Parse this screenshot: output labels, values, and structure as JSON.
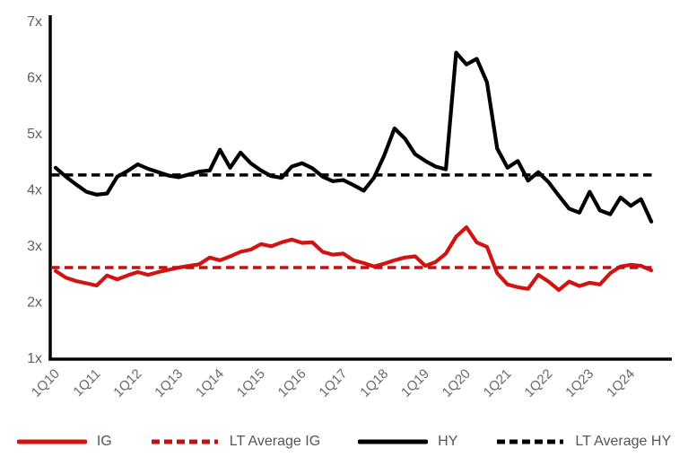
{
  "chart_data": {
    "type": "line",
    "title": "",
    "ylabel": "",
    "xlabel": "",
    "ylim": [
      1,
      7
    ],
    "grid": false,
    "legend_position": "bottom",
    "y_ticks": [
      {
        "label": "7x",
        "value": 7
      },
      {
        "label": "6x",
        "value": 6
      },
      {
        "label": "5x",
        "value": 5
      },
      {
        "label": "4x",
        "value": 4
      },
      {
        "label": "3x",
        "value": 3
      },
      {
        "label": "2x",
        "value": 2
      },
      {
        "label": "1x",
        "value": 1
      }
    ],
    "x_tick_labels": [
      "1Q10",
      "1Q11",
      "1Q12",
      "1Q13",
      "1Q14",
      "1Q15",
      "1Q16",
      "1Q17",
      "1Q18",
      "1Q19",
      "1Q20",
      "1Q21",
      "1Q22",
      "1Q23",
      "1Q24"
    ],
    "x_categories": [
      "1Q10",
      "2Q10",
      "3Q10",
      "4Q10",
      "1Q11",
      "2Q11",
      "3Q11",
      "4Q11",
      "1Q12",
      "2Q12",
      "3Q12",
      "4Q12",
      "1Q13",
      "2Q13",
      "3Q13",
      "4Q13",
      "1Q14",
      "2Q14",
      "3Q14",
      "4Q14",
      "1Q15",
      "2Q15",
      "3Q15",
      "4Q15",
      "1Q16",
      "2Q16",
      "3Q16",
      "4Q16",
      "1Q17",
      "2Q17",
      "3Q17",
      "4Q17",
      "1Q18",
      "2Q18",
      "3Q18",
      "4Q18",
      "1Q19",
      "2Q19",
      "3Q19",
      "4Q19",
      "1Q20",
      "2Q20",
      "3Q20",
      "4Q20",
      "1Q21",
      "2Q21",
      "3Q21",
      "4Q21",
      "1Q22",
      "2Q22",
      "3Q22",
      "4Q22",
      "1Q23",
      "2Q23",
      "3Q23",
      "4Q23",
      "1Q24",
      "2Q24",
      "3Q24"
    ],
    "colors": {
      "ig": "#d21410",
      "hy": "#000000",
      "axis": "#000000",
      "tick_text": "#5d5f63"
    },
    "series": [
      {
        "name": "IG",
        "style": "solid",
        "color": "#d21410",
        "values": [
          2.54,
          2.42,
          2.36,
          2.32,
          2.28,
          2.46,
          2.39,
          2.46,
          2.52,
          2.47,
          2.52,
          2.56,
          2.6,
          2.63,
          2.66,
          2.78,
          2.73,
          2.8,
          2.88,
          2.92,
          3.02,
          2.98,
          3.05,
          3.1,
          3.04,
          3.05,
          2.88,
          2.83,
          2.85,
          2.73,
          2.68,
          2.62,
          2.67,
          2.73,
          2.78,
          2.8,
          2.63,
          2.7,
          2.85,
          3.15,
          3.32,
          3.05,
          2.97,
          2.5,
          2.3,
          2.25,
          2.22,
          2.47,
          2.35,
          2.2,
          2.35,
          2.27,
          2.33,
          2.3,
          2.5,
          2.62,
          2.65,
          2.63,
          2.55
        ]
      },
      {
        "name": "LT Average IG",
        "style": "dashed",
        "color": "#c50f12",
        "average_value": 2.6
      },
      {
        "name": "HY",
        "style": "solid",
        "color": "#000000",
        "values": [
          4.38,
          4.22,
          4.08,
          3.95,
          3.9,
          3.92,
          4.22,
          4.32,
          4.44,
          4.36,
          4.3,
          4.24,
          4.21,
          4.26,
          4.31,
          4.33,
          4.7,
          4.38,
          4.65,
          4.46,
          4.33,
          4.23,
          4.2,
          4.4,
          4.46,
          4.37,
          4.22,
          4.14,
          4.16,
          4.07,
          3.97,
          4.2,
          4.6,
          5.08,
          4.9,
          4.62,
          4.5,
          4.4,
          4.35,
          6.43,
          6.22,
          6.32,
          5.9,
          4.72,
          4.38,
          4.5,
          4.15,
          4.3,
          4.12,
          3.88,
          3.65,
          3.58,
          3.95,
          3.62,
          3.55,
          3.85,
          3.7,
          3.82,
          3.42
        ]
      },
      {
        "name": "LT Average HY",
        "style": "dashed",
        "color": "#000000",
        "average_value": 4.25
      }
    ]
  }
}
